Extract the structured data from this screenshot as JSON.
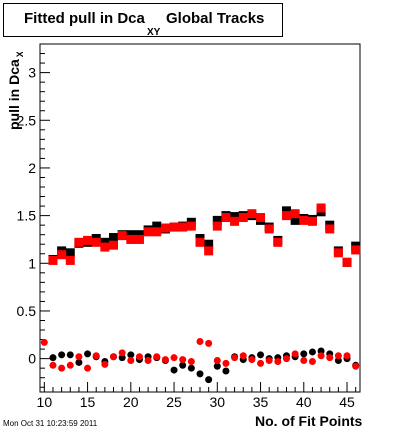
{
  "title": {
    "prefix": "Fitted pull in Dca",
    "subscript": "XY",
    "suffix": "Global Tracks"
  },
  "footer_timestamp": "Mon Oct 31 10:23:59 2011",
  "chart_data": {
    "type": "scatter",
    "xlabel": "No. of Fit Points",
    "ylabel_prefix": "pull in Dca",
    "ylabel_subscript": "XY",
    "xlim": [
      9.5,
      46.5
    ],
    "ylim": [
      -0.35,
      3.3
    ],
    "xticks": [
      10,
      15,
      20,
      25,
      30,
      35,
      40,
      45
    ],
    "yticks": [
      0,
      0.5,
      1,
      1.5,
      2,
      2.5,
      3
    ],
    "ytick_labels": [
      "0",
      "0.5",
      "1",
      "1.5",
      "2",
      "2.5",
      "3"
    ],
    "grid": false,
    "colors": {
      "black": "#000000",
      "red": "#ff0000"
    },
    "series": [
      {
        "marker": "square",
        "color": "#000000",
        "x": [
          11,
          12,
          13,
          14,
          15,
          16,
          17,
          18,
          19,
          20,
          21,
          22,
          23,
          24,
          25,
          26,
          27,
          28,
          29,
          30,
          31,
          32,
          33,
          34,
          35,
          36,
          37,
          38,
          39,
          40,
          41,
          42,
          43,
          44,
          45,
          46
        ],
        "y": [
          1.04,
          1.13,
          1.11,
          1.21,
          1.22,
          1.26,
          1.22,
          1.27,
          1.3,
          1.3,
          1.3,
          1.35,
          1.39,
          1.36,
          1.38,
          1.39,
          1.43,
          1.26,
          1.2,
          1.45,
          1.5,
          1.49,
          1.5,
          1.5,
          1.45,
          1.38,
          1.24,
          1.55,
          1.45,
          1.47,
          1.46,
          1.54,
          1.4,
          1.13,
          1.01,
          1.18
        ]
      },
      {
        "marker": "square",
        "color": "#ff0000",
        "x": [
          11,
          12,
          13,
          14,
          15,
          16,
          17,
          18,
          19,
          20,
          21,
          22,
          23,
          24,
          25,
          26,
          27,
          28,
          29,
          30,
          31,
          32,
          33,
          34,
          35,
          36,
          37,
          38,
          39,
          40,
          41,
          42,
          43,
          44,
          45,
          46
        ],
        "y": [
          1.03,
          1.09,
          1.03,
          1.22,
          1.24,
          1.22,
          1.17,
          1.19,
          1.29,
          1.25,
          1.25,
          1.33,
          1.33,
          1.37,
          1.38,
          1.38,
          1.39,
          1.22,
          1.13,
          1.39,
          1.48,
          1.44,
          1.48,
          1.52,
          1.48,
          1.36,
          1.22,
          1.5,
          1.52,
          1.45,
          1.44,
          1.58,
          1.36,
          1.11,
          1.01,
          1.14
        ]
      },
      {
        "marker": "circle",
        "color": "#000000",
        "x": [
          11,
          12,
          13,
          14,
          15,
          16,
          17,
          18,
          19,
          20,
          21,
          22,
          23,
          24,
          25,
          26,
          27,
          28,
          29,
          30,
          31,
          32,
          33,
          34,
          35,
          36,
          37,
          38,
          39,
          40,
          41,
          42,
          43,
          44,
          45,
          46
        ],
        "y": [
          0.01,
          0.04,
          0.04,
          -0.04,
          0.05,
          0.02,
          -0.03,
          0.02,
          0.01,
          0.04,
          -0.01,
          0.02,
          0.01,
          -0.02,
          -0.12,
          -0.07,
          -0.1,
          -0.16,
          -0.22,
          -0.08,
          -0.13,
          0.02,
          -0.01,
          0.01,
          0.04,
          0.0,
          0.01,
          0.03,
          0.02,
          0.05,
          0.07,
          0.08,
          0.05,
          -0.02,
          0.0,
          -0.07
        ]
      },
      {
        "marker": "circle",
        "color": "#ff0000",
        "x": [
          10,
          11,
          12,
          13,
          14,
          15,
          16,
          17,
          18,
          19,
          20,
          21,
          22,
          23,
          24,
          25,
          26,
          27,
          28,
          29,
          30,
          31,
          32,
          33,
          34,
          35,
          36,
          37,
          38,
          39,
          40,
          41,
          42,
          43,
          44,
          45,
          46
        ],
        "y": [
          0.17,
          -0.07,
          -0.1,
          -0.07,
          0.02,
          -0.1,
          0.03,
          -0.06,
          0.02,
          0.06,
          -0.02,
          0.02,
          -0.02,
          0.02,
          -0.01,
          0.01,
          -0.01,
          -0.03,
          0.18,
          0.16,
          -0.02,
          -0.05,
          0.01,
          0.03,
          -0.01,
          -0.05,
          -0.02,
          -0.03,
          0.0,
          0.05,
          -0.02,
          -0.03,
          0.03,
          0.01,
          0.03,
          0.03,
          -0.08
        ]
      }
    ]
  }
}
